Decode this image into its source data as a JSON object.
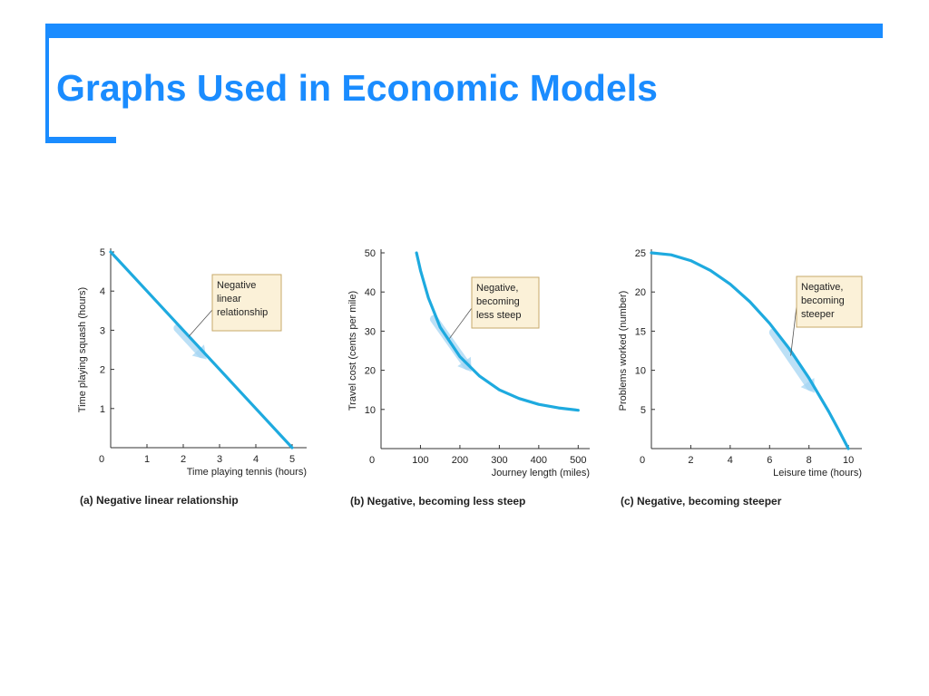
{
  "slide": {
    "title": "Graphs Used in Economic Models"
  },
  "colors": {
    "accent": "#1a8cff",
    "curve": "#1eaadf",
    "callout_bg": "#fbf1d8",
    "callout_border": "#c7a96a",
    "arrow": "#a6d6f3"
  },
  "chart_data": [
    {
      "type": "line",
      "xlabel": "Time playing tennis (hours)",
      "ylabel": "Time playing squash (hours)",
      "caption": "(a) Negative linear relationship",
      "xlim": [
        0,
        5.3
      ],
      "ylim": [
        0,
        5
      ],
      "x_ticks": [
        0,
        1,
        2,
        3,
        4,
        5
      ],
      "y_ticks": [
        1,
        2,
        3,
        4,
        5
      ],
      "origin_label": "0",
      "series": [
        {
          "x": [
            0,
            1,
            2,
            3,
            4,
            5
          ],
          "y": [
            5,
            4,
            3,
            2,
            1,
            0
          ]
        }
      ],
      "annotation": {
        "text": [
          "Negative",
          "linear",
          "relationship"
        ],
        "arrow_along_x": [
          1.9,
          2.7
        ]
      }
    },
    {
      "type": "line",
      "xlabel": "Journey length (miles)",
      "ylabel": "Travel cost (cents per mile)",
      "caption": "(b) Negative, becoming less steep",
      "xlim": [
        0,
        520
      ],
      "ylim": [
        0,
        50
      ],
      "x_ticks": [
        100,
        200,
        300,
        400,
        500
      ],
      "y_ticks": [
        10,
        20,
        30,
        40,
        50
      ],
      "origin_label": "0",
      "series": [
        {
          "x": [
            90,
            100,
            120,
            150,
            200,
            250,
            300,
            350,
            400,
            450,
            500
          ],
          "y": [
            50,
            45.5,
            38.5,
            31,
            23.5,
            18.5,
            15,
            12.8,
            11.3,
            10.4,
            9.8
          ]
        }
      ],
      "annotation": {
        "text": [
          "Negative,",
          "becoming",
          "less steep"
        ],
        "arrow_along_x": [
          140,
          235
        ]
      }
    },
    {
      "type": "line",
      "xlabel": "Leisure time (hours)",
      "ylabel": "Problems worked (number)",
      "caption": "(c) Negative, becoming steeper",
      "xlim": [
        0,
        10.5
      ],
      "ylim": [
        0,
        25
      ],
      "x_ticks": [
        2,
        4,
        6,
        8,
        10
      ],
      "y_ticks": [
        5,
        10,
        15,
        20,
        25
      ],
      "origin_label": "0",
      "series": [
        {
          "x": [
            0,
            1,
            2,
            3,
            4,
            5,
            6,
            7,
            8,
            9,
            9.5,
            10
          ],
          "y": [
            25,
            24.75,
            24,
            22.75,
            21,
            18.75,
            16,
            12.75,
            9,
            4.75,
            2.4,
            0
          ]
        }
      ],
      "annotation": {
        "text": [
          "Negative,",
          "becoming",
          "steeper"
        ],
        "arrow_along_x": [
          6.3,
          8.4
        ]
      }
    }
  ]
}
